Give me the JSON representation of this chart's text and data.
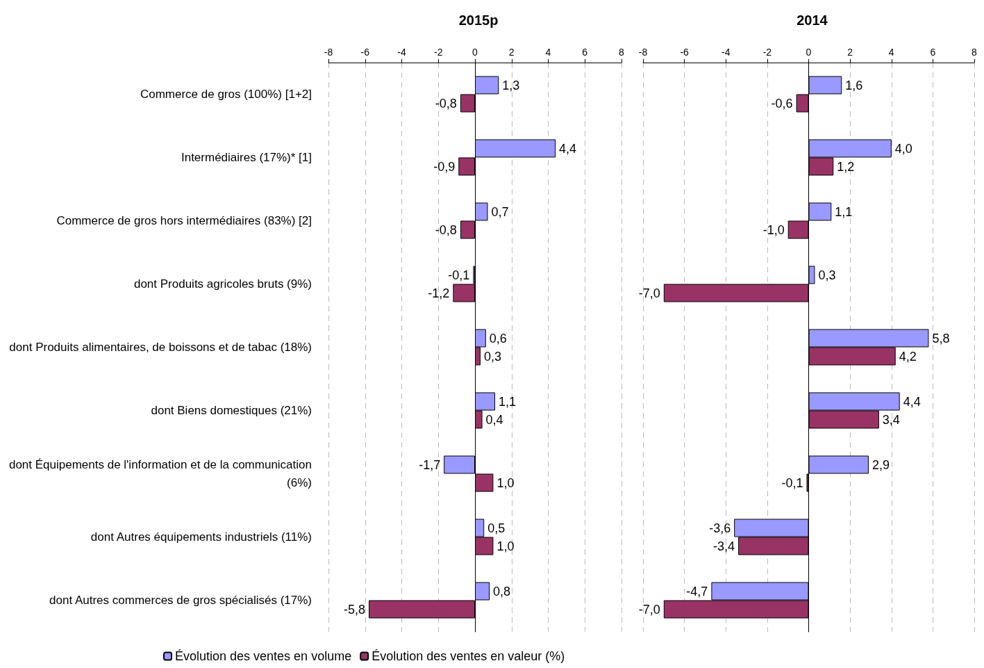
{
  "chart_data": [
    {
      "type": "bar",
      "orientation": "horizontal",
      "title": "2015p",
      "categories": [
        "Commerce de gros (100%) [1+2]",
        "Intermédiaires (17%)* [1]",
        "Commerce de gros hors intermédiaires (83%) [2]",
        "dont Produits agricoles bruts (9%)",
        "dont Produits alimentaires, de boissons et de tabac (18%)",
        "dont Biens domestiques (21%)",
        "dont Équipements de l'information et de la communication (6%)",
        "dont Autres équipements industriels (11%)",
        "dont Autres commerces de gros spécialisés (17%)"
      ],
      "series": [
        {
          "name": "Évolution des ventes en volume",
          "color": "#9999ff",
          "values": [
            1.3,
            4.4,
            0.7,
            -0.1,
            0.6,
            1.1,
            -1.7,
            0.5,
            0.8
          ],
          "value_labels": [
            "1,3",
            "4,4",
            "0,7",
            "-0,1",
            "0,6",
            "1,1",
            "-1,7",
            "0,5",
            "0,8"
          ]
        },
        {
          "name": "Évolution des ventes en valeur (%)",
          "color": "#993366",
          "values": [
            -0.8,
            -0.9,
            -0.8,
            -1.2,
            0.3,
            0.4,
            1.0,
            1.0,
            -5.8
          ],
          "value_labels": [
            "-0,8",
            "-0,9",
            "-0,8",
            "-1,2",
            "0,3",
            "0,4",
            "1,0",
            "1,0",
            "-5,8"
          ]
        }
      ],
      "xlim": [
        -8,
        8
      ],
      "xticks": [
        -8,
        -6,
        -4,
        -2,
        0,
        2,
        4,
        6,
        8
      ],
      "grid": "x",
      "legend": "bottom"
    },
    {
      "type": "bar",
      "orientation": "horizontal",
      "title": "2014",
      "categories": [
        null,
        null,
        null,
        null,
        null,
        null,
        null,
        null,
        null
      ],
      "series": [
        {
          "color": "#9999ff",
          "values": [
            1.6,
            4.0,
            1.1,
            0.3,
            5.8,
            4.4,
            2.9,
            -3.6,
            -4.7
          ],
          "value_labels": [
            "1,6",
            "4,0",
            "1,1",
            "0,3",
            "5,8",
            "4,4",
            "2,9",
            "-3,6",
            "-4,7"
          ]
        },
        {
          "color": "#993366",
          "values": [
            -0.6,
            1.2,
            -1.0,
            -7.0,
            4.2,
            3.4,
            -0.1,
            -3.4,
            -7.0
          ],
          "value_labels": [
            "-0,6",
            "1,2",
            "-1,0",
            "-7,0",
            "4,2",
            "3,4",
            "-0,1",
            "-3,4",
            "-7,0"
          ]
        }
      ],
      "xlim": [
        -8,
        8
      ],
      "xticks": [
        -8,
        -6,
        -4,
        -2,
        0,
        2,
        4,
        6,
        8
      ],
      "grid": "x",
      "legend": false
    }
  ]
}
